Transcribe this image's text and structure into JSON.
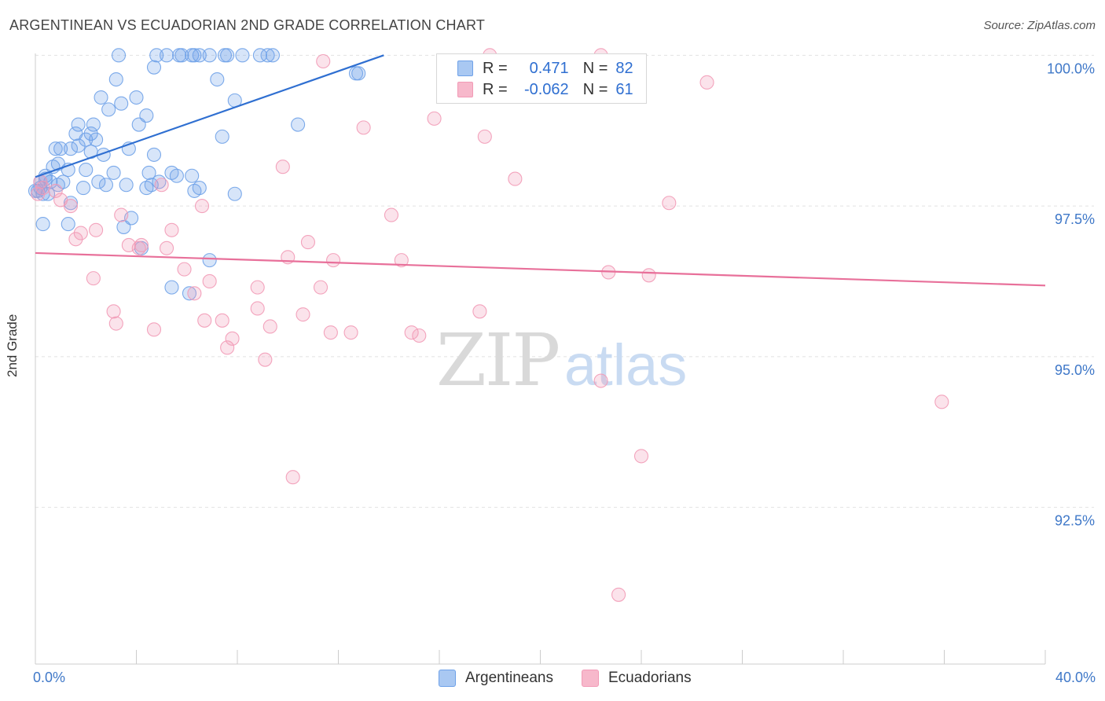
{
  "chart_data": {
    "type": "scatter",
    "title": "ARGENTINEAN VS ECUADORIAN 2ND GRADE CORRELATION CHART",
    "source": "Source: ZipAtlas.com",
    "xlabel": "",
    "ylabel": "2nd Grade",
    "xlim": [
      0,
      40
    ],
    "ylim": [
      89.9,
      100.2
    ],
    "x_tick_labels": [
      "0.0%",
      "40.0%"
    ],
    "y_ticks": [
      100,
      97.5,
      95,
      92.5
    ],
    "y_tick_labels": [
      "100.0%",
      "97.5%",
      "95.0%",
      "92.5%"
    ],
    "watermark": {
      "zip": "ZIP",
      "atlas": "atlas"
    },
    "legend": {
      "rows": [
        {
          "r_label": "R =",
          "r_value": "0.471",
          "n_label": "N =",
          "n_value": "82",
          "color": "#a9c8f2"
        },
        {
          "r_label": "R =",
          "r_value": "-0.062",
          "n_label": "N =",
          "n_value": "61",
          "color": "#f7b8cb"
        }
      ]
    },
    "series": [
      {
        "name": "Argentineans",
        "color": "#6ea1e8",
        "line_color": "#2f6fd1",
        "trend": {
          "x": [
            0,
            13.8
          ],
          "y": [
            97.98,
            100.0
          ]
        },
        "points": [
          [
            3.3,
            100
          ],
          [
            4.8,
            100
          ],
          [
            5.2,
            100
          ],
          [
            5.7,
            100
          ],
          [
            5.8,
            100
          ],
          [
            6.2,
            100
          ],
          [
            6.3,
            100
          ],
          [
            6.5,
            100
          ],
          [
            6.9,
            100
          ],
          [
            7.5,
            100
          ],
          [
            7.6,
            100
          ],
          [
            8.2,
            100
          ],
          [
            8.9,
            100
          ],
          [
            9.2,
            100
          ],
          [
            9.4,
            100
          ],
          [
            4.7,
            99.8
          ],
          [
            3.2,
            99.6
          ],
          [
            7.2,
            99.6
          ],
          [
            12.7,
            99.7
          ],
          [
            12.8,
            99.7
          ],
          [
            2.6,
            99.3
          ],
          [
            3.4,
            99.2
          ],
          [
            4.0,
            99.3
          ],
          [
            7.9,
            99.25
          ],
          [
            2.9,
            99.1
          ],
          [
            4.4,
            99.0
          ],
          [
            1.7,
            98.85
          ],
          [
            2.3,
            98.85
          ],
          [
            4.1,
            98.85
          ],
          [
            10.4,
            98.85
          ],
          [
            1.6,
            98.7
          ],
          [
            2.2,
            98.7
          ],
          [
            2.0,
            98.6
          ],
          [
            2.4,
            98.6
          ],
          [
            7.4,
            98.65
          ],
          [
            0.8,
            98.45
          ],
          [
            1.0,
            98.45
          ],
          [
            1.4,
            98.45
          ],
          [
            1.7,
            98.5
          ],
          [
            2.2,
            98.4
          ],
          [
            2.7,
            98.35
          ],
          [
            3.7,
            98.45
          ],
          [
            4.7,
            98.35
          ],
          [
            0.9,
            98.2
          ],
          [
            0.7,
            98.15
          ],
          [
            1.3,
            98.1
          ],
          [
            2.0,
            98.1
          ],
          [
            3.1,
            98.05
          ],
          [
            4.5,
            98.05
          ],
          [
            5.4,
            98.05
          ],
          [
            5.6,
            98.0
          ],
          [
            0.2,
            97.9
          ],
          [
            0.4,
            97.95
          ],
          [
            0.6,
            97.9
          ],
          [
            0.9,
            97.85
          ],
          [
            2.5,
            97.9
          ],
          [
            2.8,
            97.85
          ],
          [
            3.6,
            97.85
          ],
          [
            4.4,
            97.8
          ],
          [
            4.6,
            97.85
          ],
          [
            1.9,
            97.8
          ],
          [
            6.3,
            97.75
          ],
          [
            6.5,
            97.8
          ],
          [
            7.9,
            97.7
          ],
          [
            0.1,
            97.75
          ],
          [
            0.5,
            97.7
          ],
          [
            0.3,
            97.7
          ],
          [
            0.0,
            97.75
          ],
          [
            0.2,
            97.8
          ],
          [
            1.4,
            97.55
          ],
          [
            3.8,
            97.3
          ],
          [
            0.3,
            97.2
          ],
          [
            1.3,
            97.2
          ],
          [
            3.5,
            97.15
          ],
          [
            6.9,
            96.6
          ],
          [
            4.2,
            96.8
          ],
          [
            5.4,
            96.15
          ],
          [
            6.1,
            96.05
          ],
          [
            6.2,
            98.0
          ],
          [
            0.4,
            98.0
          ],
          [
            4.9,
            97.9
          ],
          [
            1.1,
            97.9
          ]
        ]
      },
      {
        "name": "Ecuadorians",
        "color": "#f29ab6",
        "line_color": "#e8709a",
        "trend": {
          "x": [
            0,
            40
          ],
          "y": [
            96.72,
            96.18
          ]
        },
        "points": [
          [
            18.0,
            100
          ],
          [
            22.4,
            100
          ],
          [
            11.4,
            99.9
          ],
          [
            26.6,
            99.55
          ],
          [
            15.8,
            98.95
          ],
          [
            13.0,
            98.8
          ],
          [
            17.8,
            98.65
          ],
          [
            9.8,
            98.15
          ],
          [
            19.0,
            97.95
          ],
          [
            5.0,
            97.85
          ],
          [
            0.3,
            97.8
          ],
          [
            0.8,
            97.75
          ],
          [
            1.0,
            97.6
          ],
          [
            1.4,
            97.5
          ],
          [
            6.6,
            97.5
          ],
          [
            25.1,
            97.55
          ],
          [
            14.1,
            97.35
          ],
          [
            3.4,
            97.35
          ],
          [
            2.4,
            97.1
          ],
          [
            5.4,
            97.1
          ],
          [
            1.8,
            97.05
          ],
          [
            1.6,
            96.95
          ],
          [
            10.8,
            96.9
          ],
          [
            3.7,
            96.85
          ],
          [
            4.2,
            96.85
          ],
          [
            4.1,
            96.8
          ],
          [
            5.2,
            96.8
          ],
          [
            10.0,
            96.65
          ],
          [
            11.8,
            96.6
          ],
          [
            14.5,
            96.6
          ],
          [
            22.7,
            96.4
          ],
          [
            24.3,
            96.35
          ],
          [
            5.9,
            96.45
          ],
          [
            2.3,
            96.3
          ],
          [
            6.9,
            96.25
          ],
          [
            3.1,
            95.75
          ],
          [
            8.8,
            96.15
          ],
          [
            11.3,
            96.15
          ],
          [
            6.3,
            96.05
          ],
          [
            17.6,
            95.75
          ],
          [
            10.6,
            95.7
          ],
          [
            6.7,
            95.6
          ],
          [
            7.4,
            95.6
          ],
          [
            9.3,
            95.5
          ],
          [
            3.2,
            95.55
          ],
          [
            8.8,
            95.8
          ],
          [
            4.7,
            95.45
          ],
          [
            7.8,
            95.3
          ],
          [
            11.7,
            95.4
          ],
          [
            12.5,
            95.4
          ],
          [
            14.9,
            95.4
          ],
          [
            15.2,
            95.35
          ],
          [
            7.6,
            95.15
          ],
          [
            9.1,
            94.95
          ],
          [
            22.4,
            94.6
          ],
          [
            35.9,
            94.25
          ],
          [
            24.0,
            93.35
          ],
          [
            10.2,
            93.0
          ],
          [
            23.1,
            91.05
          ],
          [
            0.1,
            97.7
          ],
          [
            0.2,
            97.9
          ]
        ]
      }
    ]
  }
}
